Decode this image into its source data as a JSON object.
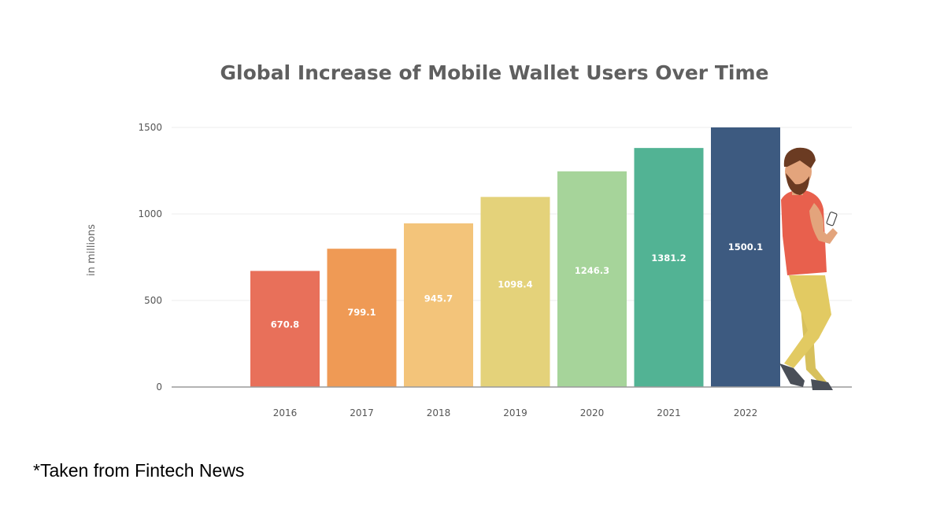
{
  "chart_data": {
    "type": "bar",
    "title": "Global Increase of Mobile Wallet Users Over Time",
    "xlabel": "",
    "ylabel": "in millions",
    "categories": [
      "2016",
      "2017",
      "2018",
      "2019",
      "2020",
      "2021",
      "2022"
    ],
    "values": [
      670.8,
      799.1,
      945.7,
      1098.4,
      1246.3,
      1381.2,
      1500.1
    ],
    "value_labels": [
      "670.8",
      "799.1",
      "945.7",
      "1098.4",
      "1246.3",
      "1381.2",
      "1500.1"
    ],
    "yticks": [
      "0",
      "500",
      "1000",
      "1500"
    ],
    "ylim": [
      0,
      1500
    ],
    "grid": true,
    "colors": [
      "#e8705a",
      "#ef9a55",
      "#f3c47a",
      "#e4d27a",
      "#a6d49a",
      "#52b394",
      "#3d5a80"
    ]
  },
  "source_note": "*Taken from Fintech News"
}
